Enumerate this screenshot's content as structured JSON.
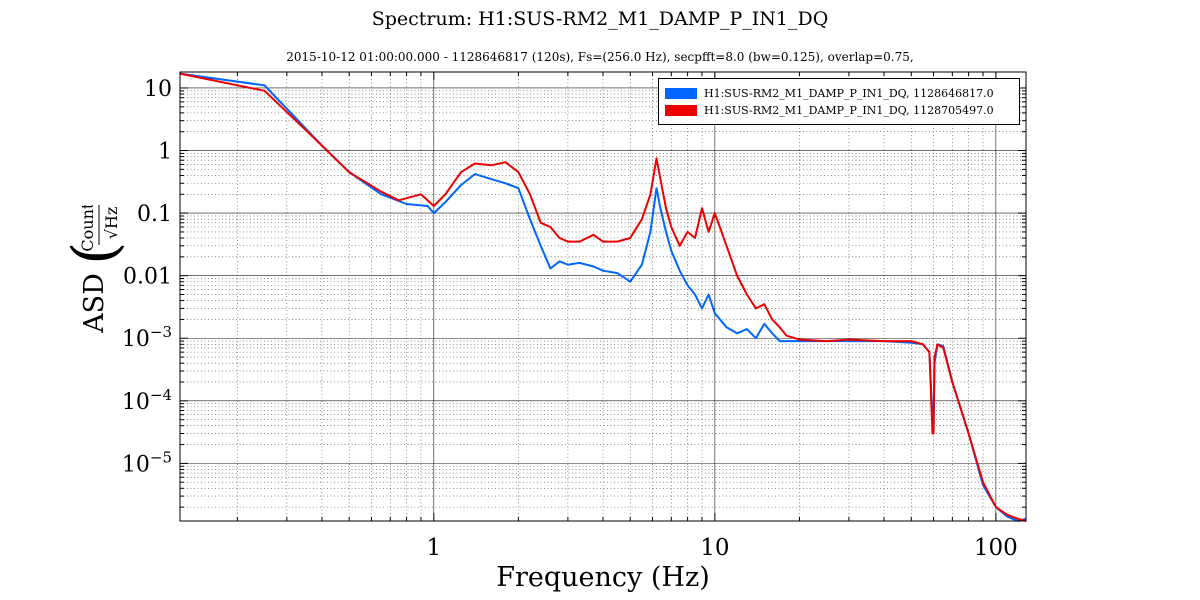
{
  "chart_data": {
    "type": "line",
    "title": "Spectrum: H1:SUS-RM2_M1_DAMP_P_IN1_DQ",
    "subtitle": "2015-10-12  01:00:00.000 - 1128646817  (120s),  Fs=(256.0 Hz),  secpfft=8.0  (bw=0.125),  overlap=0.75,",
    "xlabel": "Frequency (Hz)",
    "ylabel_prefix": "ASD",
    "ylabel_numerator": "Counts",
    "ylabel_denominator": "√Hz",
    "x_scale": "log",
    "y_scale": "log",
    "xlim": [
      0.125,
      128
    ],
    "ylim": [
      1.2e-06,
      18
    ],
    "grid": true,
    "legend_position": "top-right",
    "x_ticks": [
      {
        "value": 1,
        "label": "1"
      },
      {
        "value": 10,
        "label": "10"
      },
      {
        "value": 100,
        "label": "100"
      }
    ],
    "y_ticks": [
      {
        "value": 10,
        "label": "10",
        "exp": ""
      },
      {
        "value": 1,
        "label": "1",
        "exp": ""
      },
      {
        "value": 0.1,
        "label": "0.1",
        "exp": ""
      },
      {
        "value": 0.01,
        "label": "0.01",
        "exp": ""
      },
      {
        "value": 0.001,
        "label": "10",
        "exp": "−3"
      },
      {
        "value": 0.0001,
        "label": "10",
        "exp": "−4"
      },
      {
        "value": 1e-05,
        "label": "10",
        "exp": "−5"
      }
    ],
    "series": [
      {
        "name": "H1:SUS-RM2_M1_DAMP_P_IN1_DQ, 1128646817.0",
        "color": "#0066ff",
        "x": [
          0.125,
          0.25,
          0.4,
          0.5,
          0.65,
          0.8,
          0.95,
          1.0,
          1.1,
          1.25,
          1.4,
          1.6,
          1.8,
          2.0,
          2.2,
          2.4,
          2.6,
          2.8,
          3.0,
          3.3,
          3.7,
          4.0,
          4.5,
          5.0,
          5.5,
          5.9,
          6.2,
          6.4,
          6.7,
          7.0,
          7.5,
          8.0,
          8.5,
          9.0,
          9.5,
          10,
          11,
          12,
          13,
          14,
          15,
          16,
          17,
          18,
          20,
          25,
          30,
          40,
          50,
          55,
          58,
          59.5,
          60,
          60.5,
          62,
          65,
          70,
          80,
          90,
          100,
          110,
          120,
          128
        ],
        "y": [
          17,
          11,
          1.2,
          0.45,
          0.2,
          0.14,
          0.13,
          0.1,
          0.15,
          0.28,
          0.42,
          0.35,
          0.3,
          0.25,
          0.08,
          0.03,
          0.013,
          0.017,
          0.015,
          0.016,
          0.014,
          0.012,
          0.011,
          0.008,
          0.015,
          0.05,
          0.25,
          0.12,
          0.05,
          0.025,
          0.012,
          0.007,
          0.005,
          0.003,
          0.005,
          0.0025,
          0.0015,
          0.0012,
          0.0014,
          0.001,
          0.0017,
          0.0012,
          0.0009,
          0.0009,
          0.0009,
          0.0009,
          0.0009,
          0.0009,
          0.00085,
          0.0008,
          0.0006,
          5e-05,
          3e-05,
          0.0004,
          0.0008,
          0.00075,
          0.0002,
          3e-05,
          4.5e-06,
          2e-06,
          1.4e-06,
          1.2e-06,
          1.3e-06
        ]
      },
      {
        "name": "H1:SUS-RM2_M1_DAMP_P_IN1_DQ, 1128705497.0",
        "color": "#ee0000",
        "x": [
          0.125,
          0.25,
          0.4,
          0.5,
          0.65,
          0.75,
          0.9,
          1.0,
          1.1,
          1.25,
          1.4,
          1.6,
          1.8,
          2.0,
          2.2,
          2.4,
          2.6,
          2.8,
          3.0,
          3.3,
          3.7,
          4.0,
          4.5,
          5.0,
          5.5,
          5.9,
          6.2,
          6.4,
          6.7,
          7.0,
          7.5,
          8.0,
          8.5,
          9.0,
          9.5,
          10,
          11,
          12,
          13,
          14,
          15,
          16,
          17,
          18,
          20,
          25,
          30,
          40,
          50,
          55,
          58,
          59.5,
          60,
          60.5,
          62,
          65,
          70,
          80,
          90,
          100,
          110,
          120,
          128
        ],
        "y": [
          17,
          9,
          1.2,
          0.45,
          0.22,
          0.16,
          0.2,
          0.13,
          0.2,
          0.45,
          0.62,
          0.58,
          0.65,
          0.45,
          0.2,
          0.07,
          0.06,
          0.04,
          0.035,
          0.035,
          0.045,
          0.035,
          0.035,
          0.04,
          0.08,
          0.2,
          0.75,
          0.35,
          0.12,
          0.06,
          0.03,
          0.05,
          0.04,
          0.12,
          0.05,
          0.1,
          0.03,
          0.01,
          0.005,
          0.003,
          0.0035,
          0.002,
          0.0015,
          0.0011,
          0.00095,
          0.0009,
          0.00095,
          0.0009,
          0.0009,
          0.0008,
          0.0006,
          3e-05,
          3e-05,
          0.0005,
          0.0008,
          0.0007,
          0.0002,
          3e-05,
          5e-06,
          2e-06,
          1.5e-06,
          1.3e-06,
          1.2e-06
        ]
      }
    ]
  }
}
